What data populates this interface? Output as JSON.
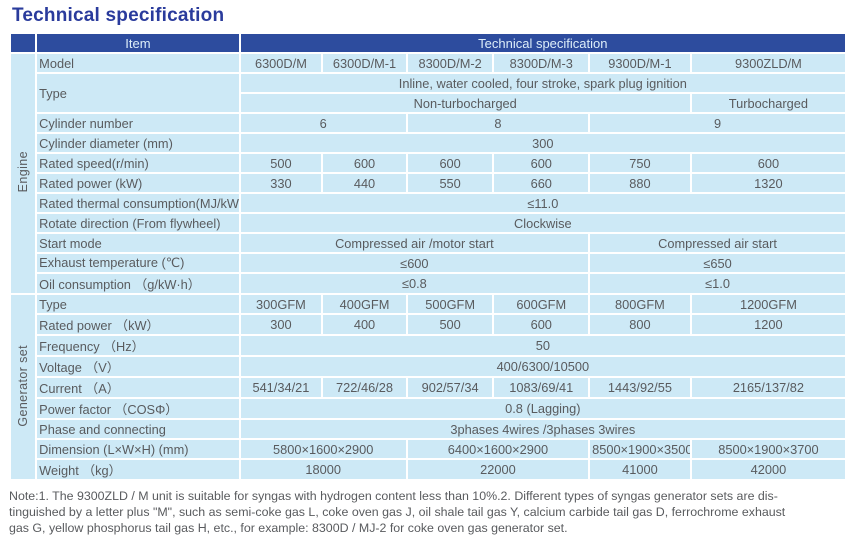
{
  "page": {
    "title": "Technical specification"
  },
  "colors": {
    "title": "#2a3b9c",
    "header_bg": "#2d4c9e",
    "header_text": "#dcedf9",
    "cell_bg": "#cde9f6",
    "body_text": "#595b5e"
  },
  "table": {
    "header": {
      "item_label": "Item",
      "spec_label": "Technical specification"
    },
    "sections": [
      {
        "label": "Engine",
        "rows": [
          {
            "item": "Model",
            "cells": [
              {
                "t": "6300D/M",
                "s": 1
              },
              {
                "t": "6300D/M-1",
                "s": 1
              },
              {
                "t": "8300D/M-2",
                "s": 1
              },
              {
                "t": "8300D/M-3",
                "s": 1
              },
              {
                "t": "9300D/M-1",
                "s": 1
              },
              {
                "t": "9300ZLD/M",
                "s": 1
              }
            ]
          },
          {
            "item": "Type",
            "item_rowspan": 2,
            "cells": [
              {
                "t": "Inline, water cooled, four stroke, spark plug ignition",
                "s": 6
              }
            ]
          },
          {
            "item": null,
            "cells": [
              {
                "t": "Non-turbocharged",
                "s": 5
              },
              {
                "t": "Turbocharged",
                "s": 1
              }
            ]
          },
          {
            "item": "Cylinder number",
            "cells": [
              {
                "t": "6",
                "s": 2
              },
              {
                "t": "8",
                "s": 2
              },
              {
                "t": "9",
                "s": 2
              }
            ]
          },
          {
            "item": "Cylinder diameter (mm)",
            "cells": [
              {
                "t": "300",
                "s": 6
              }
            ]
          },
          {
            "item": "Rated speed(r/min)",
            "cells": [
              {
                "t": "500",
                "s": 1
              },
              {
                "t": "600",
                "s": 1
              },
              {
                "t": "600",
                "s": 1
              },
              {
                "t": "600",
                "s": 1
              },
              {
                "t": "750",
                "s": 1
              },
              {
                "t": "600",
                "s": 1
              }
            ]
          },
          {
            "item": "Rated power (kW)",
            "cells": [
              {
                "t": "330",
                "s": 1
              },
              {
                "t": "440",
                "s": 1
              },
              {
                "t": "550",
                "s": 1
              },
              {
                "t": "660",
                "s": 1
              },
              {
                "t": "880",
                "s": 1
              },
              {
                "t": "1320",
                "s": 1
              }
            ]
          },
          {
            "item": "Rated thermal consumption(MJ/kW·h)",
            "small": true,
            "cells": [
              {
                "t": "≤11.0",
                "s": 6
              }
            ]
          },
          {
            "item": "Rotate direction (From flywheel)",
            "cells": [
              {
                "t": "Clockwise",
                "s": 6
              }
            ]
          },
          {
            "item": "Start mode",
            "cells": [
              {
                "t": "Compressed air /motor start",
                "s": 4
              },
              {
                "t": "Compressed air start",
                "s": 2
              }
            ]
          },
          {
            "item": "Exhaust temperature (℃)",
            "cells": [
              {
                "t": "≤600",
                "s": 4
              },
              {
                "t": "≤650",
                "s": 2
              }
            ]
          },
          {
            "item": "Oil consumption （g/kW·h）",
            "cells": [
              {
                "t": "≤0.8",
                "s": 4
              },
              {
                "t": "≤1.0",
                "s": 2
              }
            ]
          }
        ]
      },
      {
        "label": "Generator set",
        "rows": [
          {
            "item": "Type",
            "cells": [
              {
                "t": "300GFM",
                "s": 1
              },
              {
                "t": "400GFM",
                "s": 1
              },
              {
                "t": "500GFM",
                "s": 1
              },
              {
                "t": "600GFM",
                "s": 1
              },
              {
                "t": "800GFM",
                "s": 1
              },
              {
                "t": "1200GFM",
                "s": 1
              }
            ]
          },
          {
            "item": "Rated power （kW）",
            "cells": [
              {
                "t": "300",
                "s": 1
              },
              {
                "t": "400",
                "s": 1
              },
              {
                "t": "500",
                "s": 1
              },
              {
                "t": "600",
                "s": 1
              },
              {
                "t": "800",
                "s": 1
              },
              {
                "t": "1200",
                "s": 1
              }
            ]
          },
          {
            "item": "Frequency （Hz）",
            "cells": [
              {
                "t": "50",
                "s": 6
              }
            ]
          },
          {
            "item": "Voltage （V）",
            "cells": [
              {
                "t": "400/6300/10500",
                "s": 6
              }
            ]
          },
          {
            "item": "Current （A）",
            "cells": [
              {
                "t": "541/34/21",
                "s": 1
              },
              {
                "t": "722/46/28",
                "s": 1
              },
              {
                "t": "902/57/34",
                "s": 1
              },
              {
                "t": "1083/69/41",
                "s": 1
              },
              {
                "t": "1443/92/55",
                "s": 1
              },
              {
                "t": "2165/137/82",
                "s": 1
              }
            ]
          },
          {
            "item": "Power factor  （COSΦ）",
            "cells": [
              {
                "t": "0.8 (Lagging)",
                "s": 6
              }
            ]
          },
          {
            "item": "Phase and connecting",
            "cells": [
              {
                "t": "3phases 4wires /3phases 3wires",
                "s": 6
              }
            ]
          },
          {
            "item": "Dimension (L×W×H)   (mm)",
            "small": true,
            "cells": [
              {
                "t": "5800×1600×2900",
                "s": 2
              },
              {
                "t": "6400×1600×2900",
                "s": 2
              },
              {
                "t": "8500×1900×3500",
                "s": 1,
                "small": true
              },
              {
                "t": "8500×1900×3700",
                "s": 1
              }
            ]
          },
          {
            "item": "Weight （kg）",
            "cells": [
              {
                "t": "18000",
                "s": 2
              },
              {
                "t": "22000",
                "s": 2
              },
              {
                "t": "41000",
                "s": 1
              },
              {
                "t": "42000",
                "s": 1
              }
            ]
          }
        ]
      }
    ]
  },
  "note": {
    "lines": [
      "Note:1. The 9300ZLD / M unit is suitable for syngas with hydrogen content less than 10%.2. Different types of syngas generator sets are dis-",
      "tinguished by a letter plus \"M\", such as semi-coke gas L, coke oven gas J, oil shale tail gas Y, calcium carbide tail gas D, ferrochrome exhaust",
      "gas G, yellow phosphorus tail gas H, etc., for example: 8300D / MJ-2 for coke oven gas generator set."
    ]
  }
}
